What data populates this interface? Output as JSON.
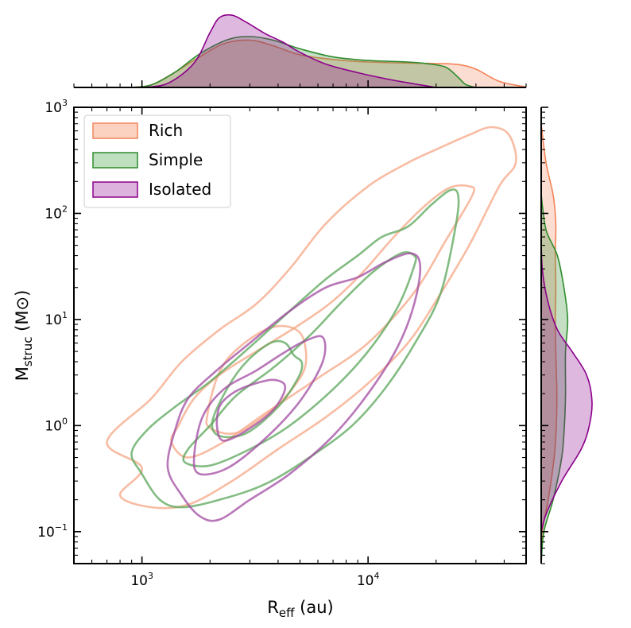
{
  "chart_data": {
    "type": "kde-joint-plot",
    "x_scale": "log",
    "y_scale": "log",
    "xlim": [
      500,
      50000
    ],
    "ylim": [
      0.05,
      1000
    ],
    "xlabel": {
      "main": "R",
      "sub": "eff",
      "rest": " (au)"
    },
    "ylabel": {
      "main": "M",
      "sub": "struc",
      "rest": " (M",
      "symbol": "⊙",
      "close": ")"
    },
    "x_ticks": [
      {
        "value": 1000,
        "base": "10",
        "exp": "3"
      },
      {
        "value": 10000,
        "base": "10",
        "exp": "4"
      }
    ],
    "y_ticks": [
      {
        "value": 0.1,
        "base": "10",
        "exp": "−1"
      },
      {
        "value": 1,
        "base": "10",
        "exp": "0"
      },
      {
        "value": 10,
        "base": "10",
        "exp": "1"
      },
      {
        "value": 100,
        "base": "10",
        "exp": "2"
      },
      {
        "value": 1000,
        "base": "10",
        "exp": "3"
      }
    ],
    "legend": {
      "position": "top-left"
    },
    "series": [
      {
        "name": "Rich",
        "color": "#f4845a",
        "line_color": "#f5a584",
        "fill_color": "#fbd2c0",
        "contours": [
          [
            [
              700,
              0.7
            ],
            [
              1000,
              0.4
            ],
            [
              800,
              0.22
            ],
            [
              1100,
              0.17
            ],
            [
              1600,
              0.18
            ],
            [
              2500,
              0.3
            ],
            [
              4000,
              0.6
            ],
            [
              6500,
              1.2
            ],
            [
              10000,
              2.5
            ],
            [
              15000,
              6
            ],
            [
              20000,
              15
            ],
            [
              28000,
              50
            ],
            [
              38000,
              180
            ],
            [
              45000,
              300
            ],
            [
              42000,
              550
            ],
            [
              35000,
              650
            ],
            [
              28000,
              550
            ],
            [
              20000,
              400
            ],
            [
              15000,
              300
            ],
            [
              10000,
              180
            ],
            [
              6500,
              80
            ],
            [
              4500,
              30
            ],
            [
              3200,
              14
            ],
            [
              2200,
              8
            ],
            [
              1500,
              4
            ],
            [
              1100,
              1.8
            ]
          ],
          [
            [
              1450,
              1.0
            ],
            [
              1350,
              0.7
            ],
            [
              1600,
              0.5
            ],
            [
              2300,
              0.7
            ],
            [
              3500,
              1.3
            ],
            [
              6000,
              2.8
            ],
            [
              10000,
              6
            ],
            [
              16000,
              18
            ],
            [
              22000,
              55
            ],
            [
              29000,
              150
            ],
            [
              28000,
              180
            ],
            [
              23000,
              175
            ],
            [
              18000,
              120
            ],
            [
              13000,
              60
            ],
            [
              9500,
              28
            ],
            [
              7000,
              15
            ],
            [
              5000,
              9
            ],
            [
              3200,
              5
            ],
            [
              2200,
              3
            ],
            [
              1700,
              1.8
            ]
          ],
          [
            [
              1950,
              1.3
            ],
            [
              2000,
              0.95
            ],
            [
              2600,
              0.85
            ],
            [
              3600,
              1.3
            ],
            [
              4600,
              2.2
            ],
            [
              5300,
              3.8
            ],
            [
              5000,
              7.5
            ],
            [
              3800,
              8.5
            ],
            [
              2700,
              5.5
            ],
            [
              2200,
              3.2
            ]
          ]
        ]
      },
      {
        "name": "Simple",
        "color": "#2e8b2e",
        "line_color": "#5aa55a",
        "fill_color": "#bfe0bf",
        "contours": [
          [
            [
              900,
              0.55
            ],
            [
              1000,
              0.35
            ],
            [
              1200,
              0.2
            ],
            [
              1500,
              0.17
            ],
            [
              2200,
              0.2
            ],
            [
              3500,
              0.28
            ],
            [
              5500,
              0.5
            ],
            [
              8500,
              1.0
            ],
            [
              12000,
              2.3
            ],
            [
              16500,
              6.5
            ],
            [
              21000,
              18
            ],
            [
              24500,
              80
            ],
            [
              25000,
              150
            ],
            [
              23000,
              165
            ],
            [
              19000,
              120
            ],
            [
              15000,
              75
            ],
            [
              11500,
              60
            ],
            [
              9000,
              40
            ],
            [
              6500,
              24
            ],
            [
              4500,
              12
            ],
            [
              3000,
              5.5
            ],
            [
              2000,
              2.6
            ],
            [
              1400,
              1.5
            ],
            [
              1050,
              0.9
            ]
          ],
          [
            [
              1600,
              0.6
            ],
            [
              1550,
              0.45
            ],
            [
              2000,
              0.42
            ],
            [
              3000,
              0.6
            ],
            [
              4500,
              1.0
            ],
            [
              7000,
              2.2
            ],
            [
              10000,
              5
            ],
            [
              13500,
              13
            ],
            [
              16000,
              32
            ],
            [
              16000,
              40
            ],
            [
              14000,
              42
            ],
            [
              10500,
              28
            ],
            [
              7500,
              14
            ],
            [
              5500,
              7
            ],
            [
              3800,
              3.5
            ],
            [
              2600,
              1.9
            ],
            [
              2000,
              1.0
            ]
          ],
          [
            [
              2050,
              1.1
            ],
            [
              2200,
              0.8
            ],
            [
              2900,
              0.85
            ],
            [
              4000,
              1.5
            ],
            [
              4900,
              2.8
            ],
            [
              5100,
              3.9
            ],
            [
              4700,
              4.6
            ],
            [
              4300,
              6
            ],
            [
              3700,
              6
            ],
            [
              2900,
              4
            ],
            [
              2400,
              2.3
            ]
          ]
        ]
      },
      {
        "name": "Isolated",
        "color": "#8b008b",
        "line_color": "#a04aa0",
        "fill_color": "#ddb3dd",
        "contours": [
          [
            [
              1300,
              0.4
            ],
            [
              1500,
              0.22
            ],
            [
              1800,
              0.14
            ],
            [
              2200,
              0.13
            ],
            [
              3000,
              0.2
            ],
            [
              4500,
              0.35
            ],
            [
              7000,
              0.8
            ],
            [
              10000,
              2.0
            ],
            [
              13500,
              5.5
            ],
            [
              16000,
              14
            ],
            [
              17000,
              32
            ],
            [
              15500,
              42
            ],
            [
              12000,
              35
            ],
            [
              9000,
              25
            ],
            [
              6500,
              20
            ],
            [
              4500,
              12
            ],
            [
              3000,
              6
            ],
            [
              2100,
              3.2
            ],
            [
              1600,
              1.8
            ],
            [
              1400,
              0.9
            ]
          ],
          [
            [
              1700,
              0.5
            ],
            [
              1800,
              0.35
            ],
            [
              2400,
              0.4
            ],
            [
              3500,
              0.75
            ],
            [
              5000,
              1.7
            ],
            [
              6300,
              4
            ],
            [
              6300,
              6.8
            ],
            [
              5200,
              6.2
            ],
            [
              4200,
              4.8
            ],
            [
              3200,
              3.3
            ],
            [
              2300,
              2.2
            ],
            [
              1850,
              1.2
            ]
          ],
          [
            [
              2150,
              0.95
            ],
            [
              2300,
              0.72
            ],
            [
              2900,
              0.9
            ],
            [
              3800,
              1.4
            ],
            [
              4300,
              2.3
            ],
            [
              3800,
              2.7
            ],
            [
              3000,
              2.4
            ],
            [
              2500,
              2.0
            ],
            [
              2200,
              1.5
            ]
          ]
        ]
      }
    ],
    "top_marginal": {
      "axis": "x",
      "Rich": [
        [
          900,
          0.0
        ],
        [
          1100,
          0.05
        ],
        [
          1400,
          0.3
        ],
        [
          1800,
          0.6
        ],
        [
          2300,
          0.86
        ],
        [
          3000,
          0.93
        ],
        [
          3800,
          0.82
        ],
        [
          5000,
          0.64
        ],
        [
          7000,
          0.55
        ],
        [
          10000,
          0.5
        ],
        [
          15000,
          0.48
        ],
        [
          20000,
          0.47
        ],
        [
          25000,
          0.45
        ],
        [
          30000,
          0.36
        ],
        [
          38000,
          0.12
        ],
        [
          50000,
          0.01
        ]
      ],
      "Simple": [
        [
          900,
          0.0
        ],
        [
          1100,
          0.05
        ],
        [
          1400,
          0.3
        ],
        [
          1800,
          0.66
        ],
        [
          2400,
          0.94
        ],
        [
          3000,
          1.0
        ],
        [
          3800,
          0.93
        ],
        [
          5000,
          0.76
        ],
        [
          7000,
          0.6
        ],
        [
          10000,
          0.53
        ],
        [
          15000,
          0.5
        ],
        [
          18000,
          0.47
        ],
        [
          22000,
          0.4
        ],
        [
          25000,
          0.2
        ],
        [
          27000,
          0.06
        ],
        [
          30000,
          0.0
        ]
      ],
      "Isolated": [
        [
          1000,
          0.0
        ],
        [
          1300,
          0.08
        ],
        [
          1700,
          0.48
        ],
        [
          2000,
          1.08
        ],
        [
          2200,
          1.37
        ],
        [
          2500,
          1.42
        ],
        [
          2900,
          1.28
        ],
        [
          3500,
          1.06
        ],
        [
          4200,
          0.89
        ],
        [
          5000,
          0.69
        ],
        [
          6500,
          0.46
        ],
        [
          9000,
          0.29
        ],
        [
          12000,
          0.17
        ],
        [
          16000,
          0.07
        ],
        [
          20000,
          0.0
        ]
      ]
    },
    "right_marginal": {
      "axis": "y",
      "Rich": [
        [
          0.05,
          0.0
        ],
        [
          0.1,
          0.02
        ],
        [
          0.2,
          0.13
        ],
        [
          0.5,
          0.24
        ],
        [
          1,
          0.28
        ],
        [
          2,
          0.29
        ],
        [
          5,
          0.27
        ],
        [
          10,
          0.26
        ],
        [
          20,
          0.27
        ],
        [
          40,
          0.26
        ],
        [
          80,
          0.27
        ],
        [
          150,
          0.22
        ],
        [
          300,
          0.09
        ],
        [
          700,
          0.0
        ]
      ],
      "Simple": [
        [
          0.05,
          0.0
        ],
        [
          0.1,
          0.05
        ],
        [
          0.2,
          0.22
        ],
        [
          0.5,
          0.38
        ],
        [
          1,
          0.43
        ],
        [
          2,
          0.45
        ],
        [
          5,
          0.45
        ],
        [
          10,
          0.49
        ],
        [
          20,
          0.42
        ],
        [
          40,
          0.3
        ],
        [
          70,
          0.09
        ],
        [
          150,
          0.0
        ]
      ],
      "Isolated": [
        [
          0.1,
          0.0
        ],
        [
          0.15,
          0.1
        ],
        [
          0.3,
          0.38
        ],
        [
          0.6,
          0.74
        ],
        [
          1,
          0.89
        ],
        [
          1.7,
          0.94
        ],
        [
          3,
          0.84
        ],
        [
          5,
          0.57
        ],
        [
          8,
          0.3
        ],
        [
          15,
          0.12
        ],
        [
          30,
          0.02
        ],
        [
          60,
          0.0
        ]
      ]
    }
  }
}
